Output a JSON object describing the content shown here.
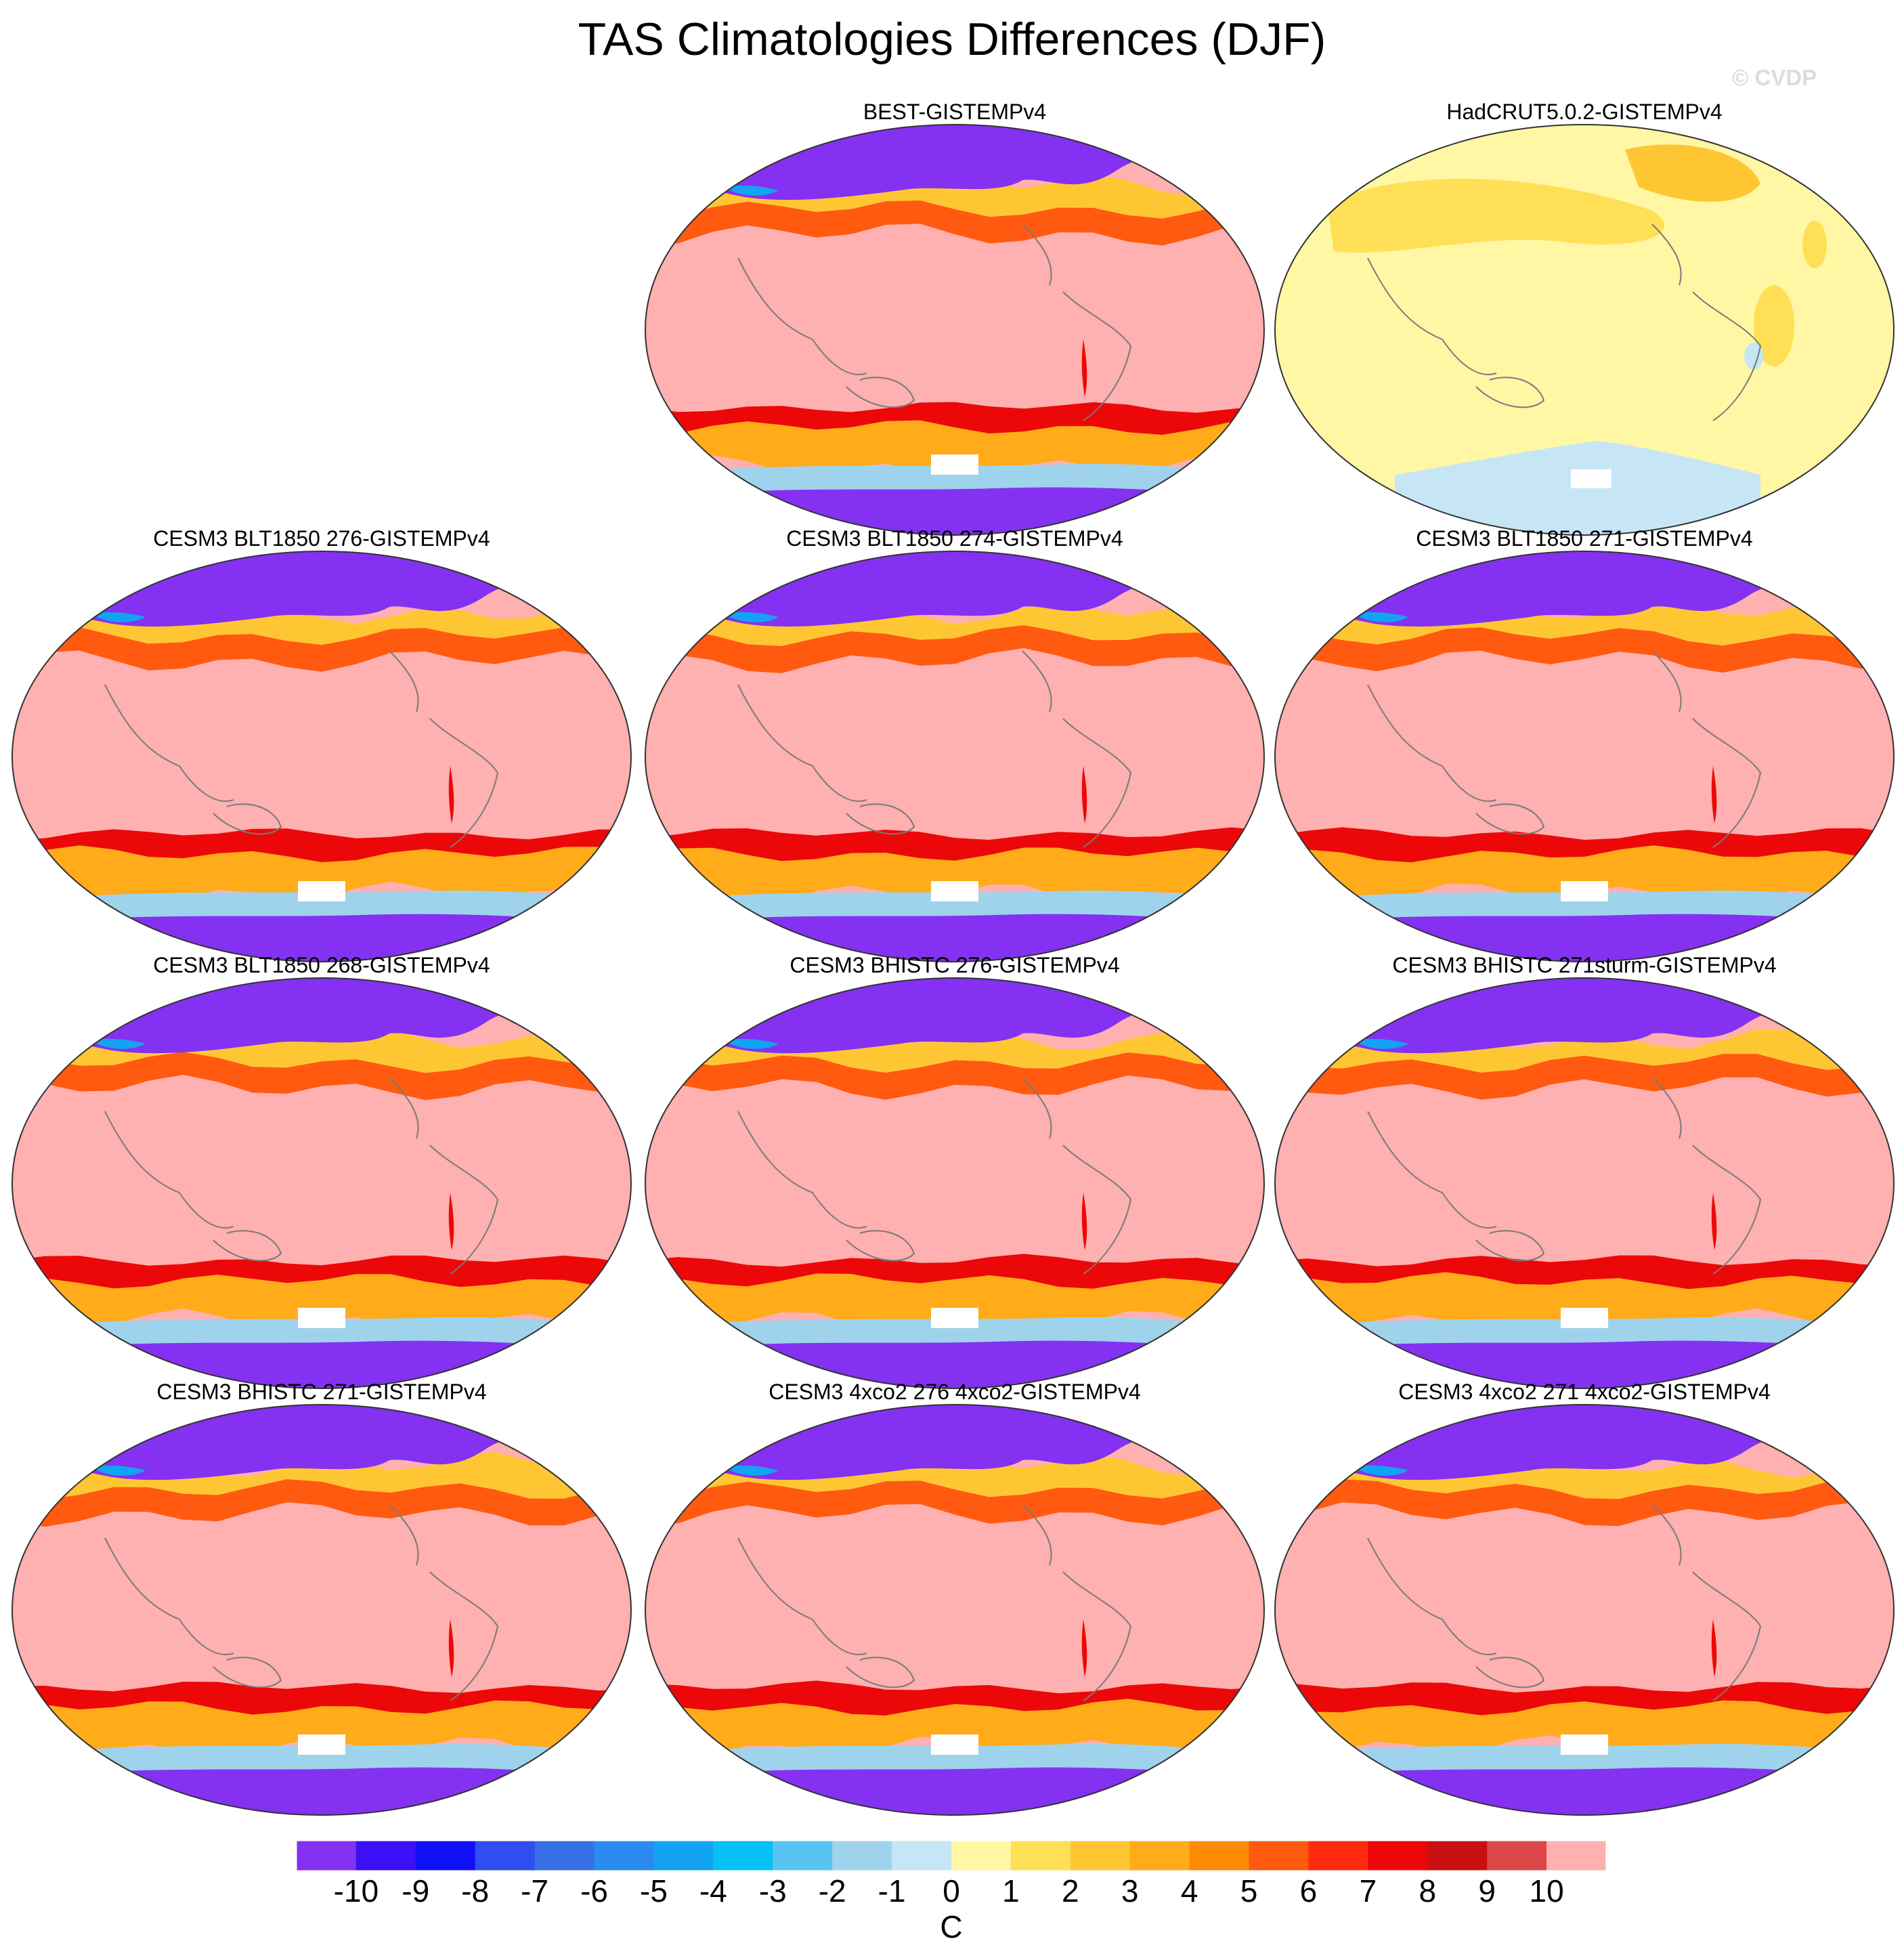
{
  "figure": {
    "title": "TAS Climatologies Differences (DJF)",
    "watermark": "© CVDP"
  },
  "panels": [
    {
      "title": "BEST-GISTEMPv4",
      "style": "model"
    },
    {
      "title": "HadCRUT5.0.2-GISTEMPv4",
      "style": "hadcrut"
    },
    {
      "title": "CESM3 BLT1850 276-GISTEMPv4",
      "style": "model"
    },
    {
      "title": "CESM3 BLT1850 274-GISTEMPv4",
      "style": "model"
    },
    {
      "title": "CESM3 BLT1850 271-GISTEMPv4",
      "style": "model"
    },
    {
      "title": "CESM3 BLT1850 268-GISTEMPv4",
      "style": "model"
    },
    {
      "title": "CESM3 BHISTC 276-GISTEMPv4",
      "style": "model"
    },
    {
      "title": "CESM3 BHISTC 271sturm-GISTEMPv4",
      "style": "model"
    },
    {
      "title": "CESM3 BHISTC 271-GISTEMPv4",
      "style": "model"
    },
    {
      "title": "CESM3 4xco2 276 4xco2-GISTEMPv4",
      "style": "model"
    },
    {
      "title": "CESM3 4xco2 271 4xco2-GISTEMPv4",
      "style": "model"
    }
  ],
  "colorbar": {
    "unit": "C",
    "labels": [
      "-10",
      "-9",
      "-8",
      "-7",
      "-6",
      "-5",
      "-4",
      "-3",
      "-2",
      "-1",
      "0",
      "1",
      "2",
      "3",
      "4",
      "5",
      "6",
      "7",
      "8",
      "9",
      "10"
    ],
    "colors": [
      "#8431f2",
      "#3b10f6",
      "#1010f8",
      "#2f4df0",
      "#3770e6",
      "#2a8af0",
      "#13a3f3",
      "#07c0f5",
      "#58c5f1",
      "#9fd3ec",
      "#c6e6f6",
      "#fff7a4",
      "#ffdf55",
      "#ffc634",
      "#ffab1a",
      "#ff8a08",
      "#ff5a10",
      "#ff2a10",
      "#ec0808",
      "#c81010",
      "#dd4646",
      "#ffb0b0"
    ]
  }
}
